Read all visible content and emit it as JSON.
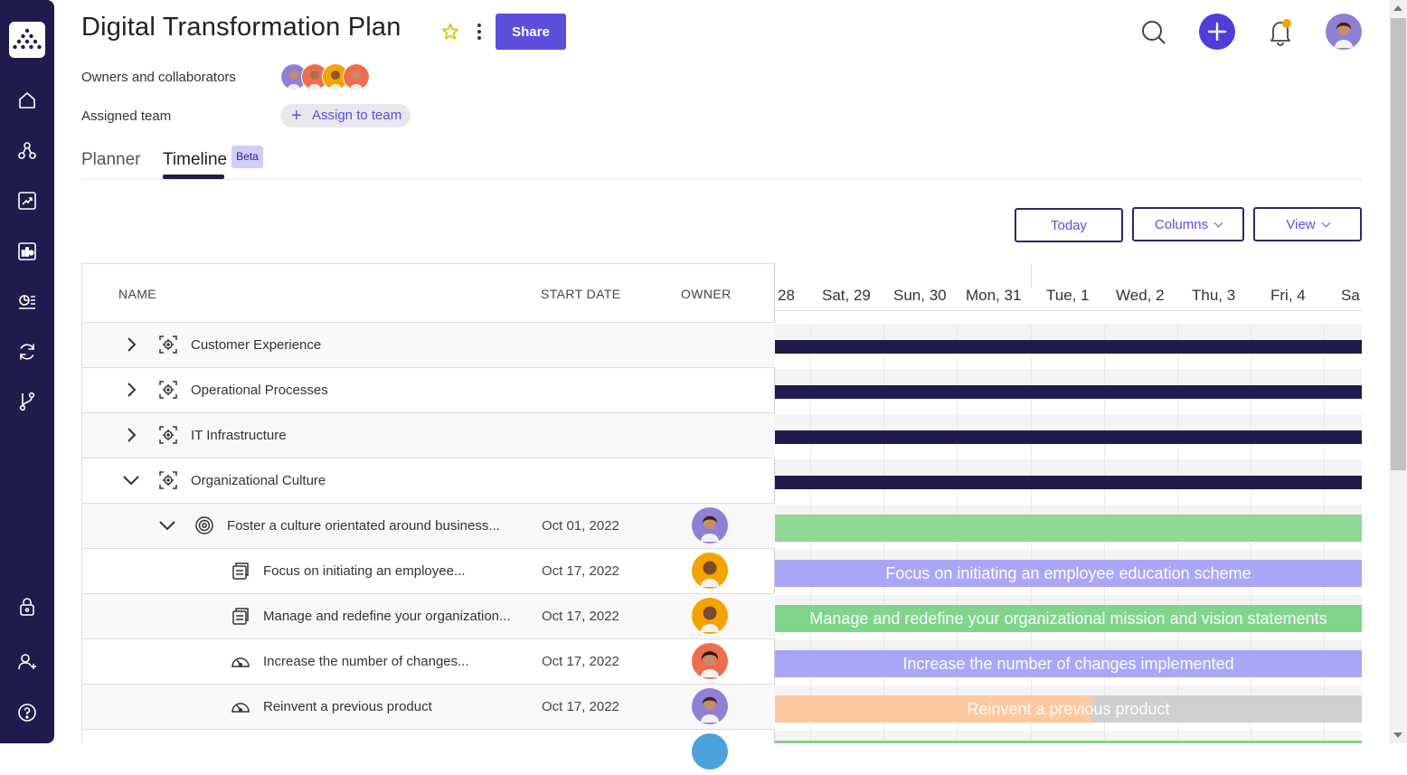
{
  "header": {
    "title": "Digital Transformation Plan",
    "share_label": "Share",
    "owners_label": "Owners and collaborators",
    "team_label": "Assigned team",
    "assign_label": "Assign to team"
  },
  "tabs": [
    {
      "label": "Planner",
      "active": false
    },
    {
      "label": "Timeline",
      "active": true,
      "badge": "Beta"
    }
  ],
  "toolbar": {
    "today": "Today",
    "columns": "Columns",
    "view": "View"
  },
  "table": {
    "headers": {
      "name": "NAME",
      "start": "START DATE",
      "owner": "OWNER"
    },
    "rows": [
      {
        "name": "Customer Experience",
        "date": "",
        "type": "objective",
        "expanded": false
      },
      {
        "name": "Operational Processes",
        "date": "",
        "type": "objective",
        "expanded": false
      },
      {
        "name": "IT Infrastructure",
        "date": "",
        "type": "objective",
        "expanded": false
      },
      {
        "name": "Organizational Culture",
        "date": "",
        "type": "objective",
        "expanded": true
      },
      {
        "name": "Foster a culture orientated around business...",
        "date": "Oct 01, 2022",
        "type": "goal",
        "expanded": true
      },
      {
        "name": "Focus on initiating an employee...",
        "date": "Oct 17, 2022",
        "type": "project"
      },
      {
        "name": "Manage and redefine your organization...",
        "date": "Oct 17, 2022",
        "type": "project"
      },
      {
        "name": "Increase the number of changes...",
        "date": "Oct 17, 2022",
        "type": "kpi"
      },
      {
        "name": "Reinvent a previous product",
        "date": "Oct 17, 2022",
        "type": "kpi"
      }
    ]
  },
  "timeline": {
    "days": [
      "28",
      "Sat, 29",
      "Sun, 30",
      "Mon, 31",
      "Tue, 1",
      "Wed, 2",
      "Thu, 3",
      "Fri, 4",
      "Sa"
    ],
    "bars": [
      {
        "label": "",
        "color": "#1f1c4d"
      },
      {
        "label": "",
        "color": "#1f1c4d"
      },
      {
        "label": "",
        "color": "#1f1c4d"
      },
      {
        "label": "",
        "color": "#1f1c4d"
      },
      {
        "label": "",
        "color": "#8fd895"
      },
      {
        "label": "Focus on initiating an employee education scheme",
        "color": "#aaa6f7"
      },
      {
        "label": "Manage and redefine your organizational mission and vision statements",
        "color": "#7fd589"
      },
      {
        "label": "Increase the number of changes implemented",
        "color": "#aaa6f7"
      },
      {
        "label": "Reinvent a previous product",
        "color": "#ffc8a0",
        "progress": 0.54,
        "remainder_color": "#cfcfcf"
      }
    ]
  },
  "colors": {
    "accent": "#5b4fdc",
    "sidebar": "#1f1c4d",
    "notification_dot": "#f5a300"
  },
  "icons": {
    "sidebar": [
      "home-icon",
      "hierarchy-icon",
      "chart-icon",
      "dashboard-icon",
      "reports-icon",
      "sync-icon",
      "branch-icon",
      "lock-icon",
      "add-user-icon",
      "help-icon"
    ]
  }
}
